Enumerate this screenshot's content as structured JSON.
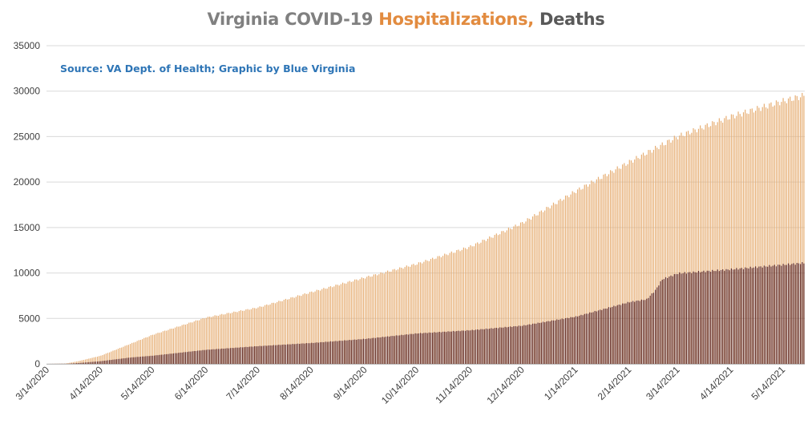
{
  "chart_data": {
    "type": "bar",
    "title_parts": [
      {
        "text": "Virginia COVID-19 ",
        "color": "#808080"
      },
      {
        "text": "Hospitalizations, ",
        "color": "#e28b3f"
      },
      {
        "text": "Deaths",
        "color": "#595959"
      }
    ],
    "source_note": "Source: VA Dept. of Health; Graphic by Blue Virginia",
    "ylim": [
      0,
      35000
    ],
    "y_ticks": [
      0,
      5000,
      10000,
      15000,
      20000,
      25000,
      30000,
      35000
    ],
    "x_range": [
      "2020-03-14",
      "2021-05-26"
    ],
    "x_tick_labels": [
      "3/14/2020",
      "4/14/2020",
      "5/14/2020",
      "6/14/2020",
      "7/14/2020",
      "8/14/2020",
      "9/14/2020",
      "10/14/2020",
      "11/14/2020",
      "12/14/2020",
      "1/14/2021",
      "2/14/2021",
      "3/14/2021",
      "4/14/2021",
      "5/14/2021"
    ],
    "grid": true,
    "series": [
      {
        "name": "Hospitalizations",
        "color": "#e6ad72",
        "anchors": [
          [
            "2020-03-14",
            0
          ],
          [
            "2020-03-24",
            20
          ],
          [
            "2020-04-01",
            300
          ],
          [
            "2020-04-14",
            900
          ],
          [
            "2020-05-01",
            2200
          ],
          [
            "2020-05-14",
            3200
          ],
          [
            "2020-06-01",
            4300
          ],
          [
            "2020-06-14",
            5100
          ],
          [
            "2020-07-14",
            6200
          ],
          [
            "2020-08-14",
            7900
          ],
          [
            "2020-09-14",
            9500
          ],
          [
            "2020-10-14",
            11000
          ],
          [
            "2020-11-14",
            12900
          ],
          [
            "2020-12-14",
            15500
          ],
          [
            "2021-01-14",
            19000
          ],
          [
            "2021-02-14",
            22200
          ],
          [
            "2021-03-14",
            25000
          ],
          [
            "2021-04-14",
            27200
          ],
          [
            "2021-05-14",
            28900
          ],
          [
            "2021-05-26",
            29500
          ]
        ]
      },
      {
        "name": "Deaths",
        "color": "#5a1d14",
        "anchors": [
          [
            "2020-03-14",
            0
          ],
          [
            "2020-03-26",
            20
          ],
          [
            "2020-04-01",
            90
          ],
          [
            "2020-04-14",
            300
          ],
          [
            "2020-05-01",
            700
          ],
          [
            "2020-05-14",
            900
          ],
          [
            "2020-06-14",
            1550
          ],
          [
            "2020-07-14",
            1950
          ],
          [
            "2020-08-14",
            2300
          ],
          [
            "2020-09-14",
            2750
          ],
          [
            "2020-10-14",
            3350
          ],
          [
            "2020-11-14",
            3700
          ],
          [
            "2020-12-14",
            4200
          ],
          [
            "2021-01-14",
            5200
          ],
          [
            "2021-02-14",
            6800
          ],
          [
            "2021-02-24",
            7100
          ],
          [
            "2021-03-01",
            8100
          ],
          [
            "2021-03-05",
            9300
          ],
          [
            "2021-03-14",
            9950
          ],
          [
            "2021-04-14",
            10400
          ],
          [
            "2021-05-14",
            10900
          ],
          [
            "2021-05-26",
            11100
          ]
        ]
      }
    ]
  }
}
